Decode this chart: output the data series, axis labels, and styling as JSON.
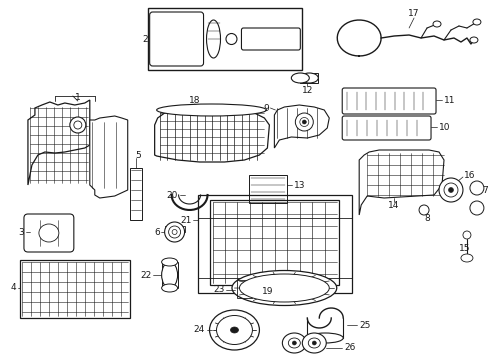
{
  "bg": "#ffffff",
  "lc": "#1a1a1a",
  "fs": 6.5,
  "fig_w": 4.89,
  "fig_h": 3.6,
  "dpi": 100
}
